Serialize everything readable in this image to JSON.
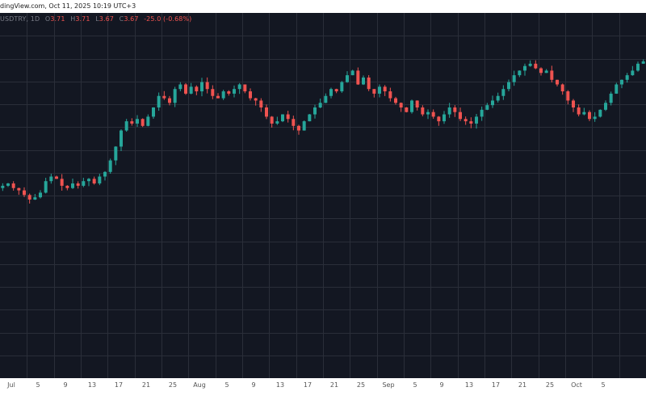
{
  "header": {
    "caption": "dingView.com, Oct 11, 2025 10:19 UTC+3"
  },
  "legend": {
    "symbol": "USDTRY, 1D",
    "open_label": "O",
    "open": "3.71",
    "high_label": "H",
    "high": "3.71",
    "low_label": "L",
    "low": "3.67",
    "close_label": "C",
    "close": "3.67",
    "change": "-25.0 (-0.68%)"
  },
  "colors": {
    "background": "#131722",
    "grid": "#2a2e39",
    "up": "#26a69a",
    "down": "#ef5350"
  },
  "x_axis": {
    "labels": [
      "Jul",
      "5",
      "9",
      "13",
      "17",
      "21",
      "25",
      "Aug",
      "5",
      "9",
      "13",
      "17",
      "21",
      "25",
      "Sep",
      "5",
      "9",
      "13",
      "17",
      "21",
      "25",
      "Oct",
      "5"
    ]
  },
  "chart_data": {
    "type": "candlestick",
    "title": "",
    "xlabel": "",
    "ylabel": "",
    "grid": true,
    "ylim": [
      0,
      100
    ],
    "path_hint": "relative price levels",
    "closes": [
      46,
      47,
      45,
      44,
      42,
      40,
      41,
      43,
      48,
      50,
      49,
      46,
      45,
      47,
      46,
      48,
      49,
      47,
      50,
      52,
      57,
      63,
      70,
      74,
      73,
      75,
      72,
      76,
      80,
      85,
      84,
      82,
      88,
      90,
      86,
      89,
      87,
      91,
      88,
      85,
      84,
      87,
      86,
      88,
      90,
      87,
      84,
      83,
      80,
      76,
      73,
      74,
      77,
      75,
      72,
      70,
      74,
      77,
      80,
      82,
      85,
      88,
      87,
      91,
      94,
      96,
      90,
      93,
      88,
      86,
      89,
      87,
      84,
      82,
      80,
      78,
      83,
      80,
      77,
      78,
      76,
      74,
      77,
      80,
      78,
      75,
      74,
      73,
      76,
      79,
      81,
      83,
      85,
      88,
      91,
      94,
      96,
      98,
      99,
      97,
      95,
      96,
      92,
      90,
      87,
      83,
      80,
      77,
      78,
      75,
      76,
      79,
      82,
      86,
      90,
      92,
      94,
      96,
      99,
      100
    ]
  }
}
